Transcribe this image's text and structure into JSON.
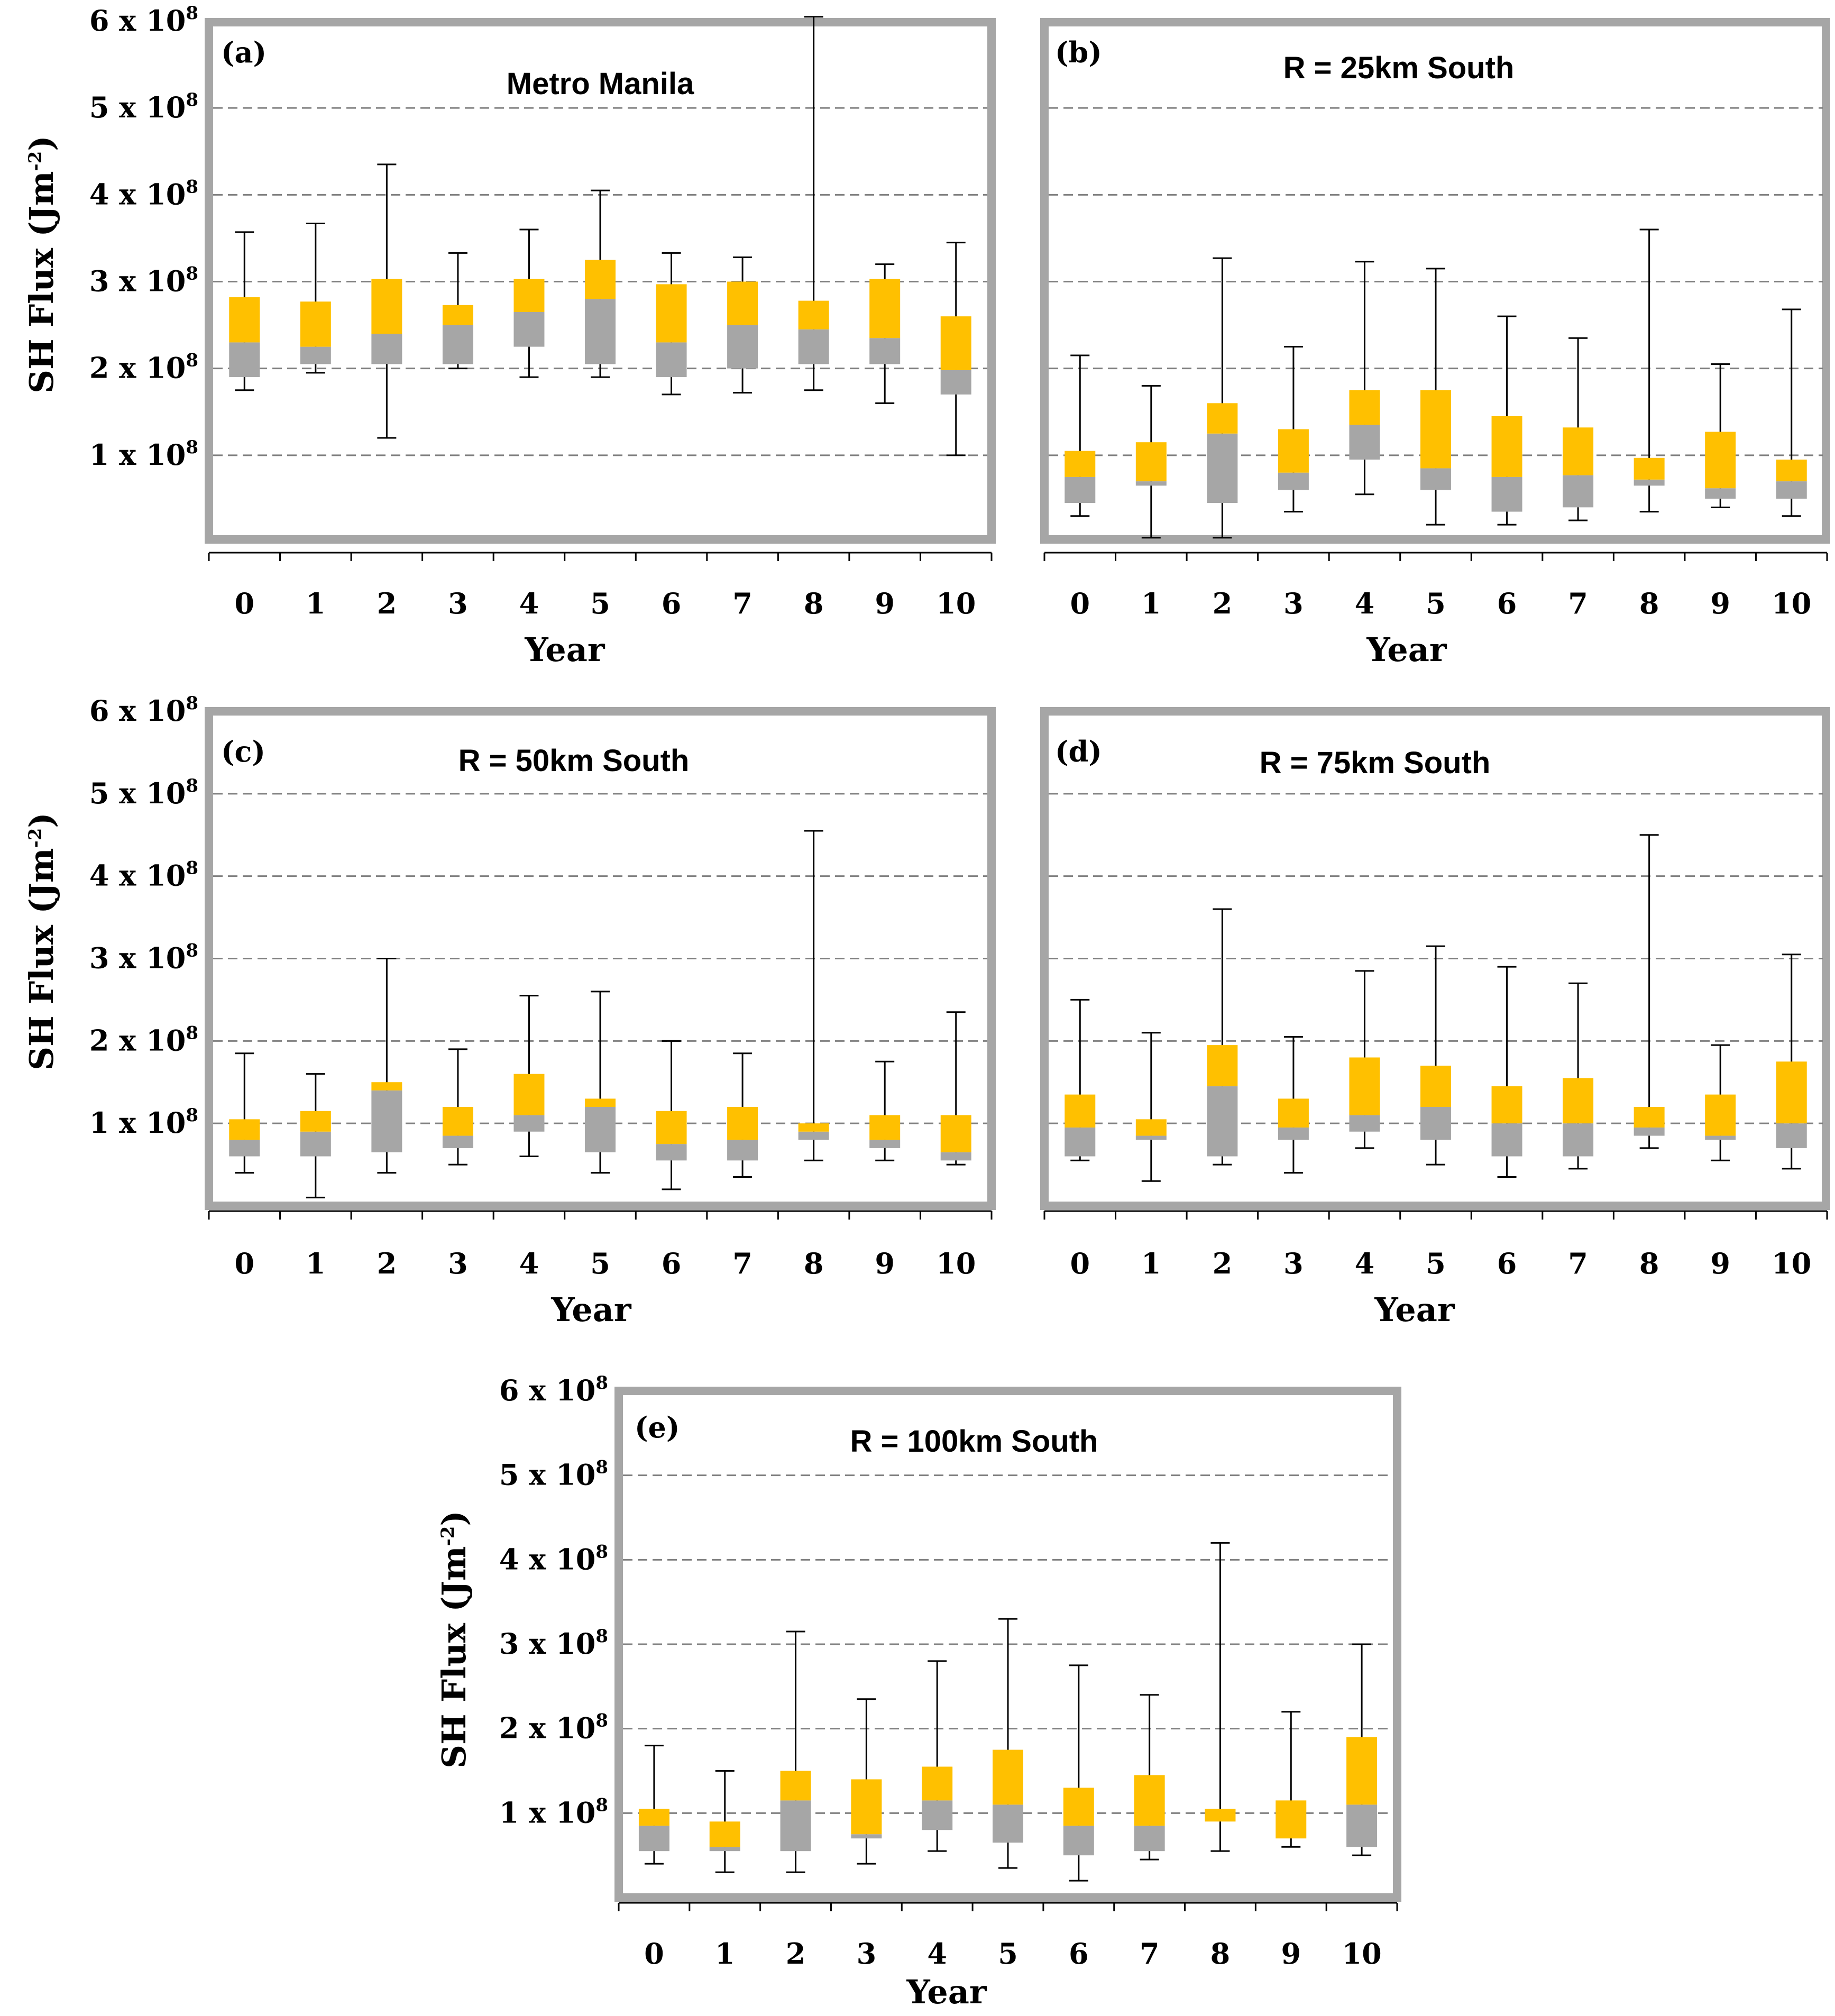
{
  "colors": {
    "upper_box": "#FFC000",
    "lower_box": "#A6A6A6",
    "frame": "#A6A6A6",
    "grid": "#808080",
    "whisker": "#000000"
  },
  "chart_data": [
    {
      "id": "a",
      "type": "box",
      "panel_label": "(a)",
      "title": "Metro Manila",
      "xlabel": "Year",
      "ylabel": "SH Flux (Jm-2)",
      "ylabel_base": "SH Flux (Jm",
      "ylabel_exp": "-2",
      "ylabel_close": ")",
      "categories": [
        "0",
        "1",
        "2",
        "3",
        "4",
        "5",
        "6",
        "7",
        "8",
        "9",
        "10"
      ],
      "y_tick_values": [
        1,
        2,
        3,
        4,
        5,
        6
      ],
      "y_ticks": [
        {
          "mant": "1 x 10",
          "exp": "8"
        },
        {
          "mant": "2 x 10",
          "exp": "8"
        },
        {
          "mant": "3 x 10",
          "exp": "8"
        },
        {
          "mant": "4 x 10",
          "exp": "8"
        },
        {
          "mant": "5 x 10",
          "exp": "8"
        },
        {
          "mant": "6 x 10",
          "exp": "8"
        }
      ],
      "ylim": [
        0.0,
        6.0
      ],
      "unit_multiplier": 100000000,
      "min": [
        1.75,
        1.95,
        1.2,
        2.0,
        1.9,
        1.9,
        1.7,
        1.72,
        1.75,
        1.6,
        1.0
      ],
      "q1": [
        1.9,
        2.05,
        2.05,
        2.05,
        2.25,
        2.05,
        1.9,
        2.0,
        2.05,
        2.05,
        1.7
      ],
      "median": [
        2.3,
        2.25,
        2.4,
        2.5,
        2.65,
        2.8,
        2.3,
        2.5,
        2.45,
        2.35,
        1.98
      ],
      "q3": [
        2.82,
        2.77,
        3.03,
        2.73,
        3.03,
        3.25,
        2.97,
        3.0,
        2.78,
        3.03,
        2.6
      ],
      "max": [
        3.57,
        3.67,
        4.35,
        3.33,
        3.6,
        4.05,
        3.33,
        3.28,
        6.05,
        3.2,
        3.45
      ]
    },
    {
      "id": "b",
      "type": "box",
      "panel_label": "(b)",
      "title": "R = 25km South",
      "xlabel": "Year",
      "categories": [
        "0",
        "1",
        "2",
        "3",
        "4",
        "5",
        "6",
        "7",
        "8",
        "9",
        "10"
      ],
      "y_tick_values": [
        1,
        2,
        3,
        4,
        5,
        6
      ],
      "ylim": [
        0.0,
        6.0
      ],
      "unit_multiplier": 100000000,
      "min": [
        0.3,
        0.05,
        0.05,
        0.35,
        0.55,
        0.2,
        0.2,
        0.25,
        0.35,
        0.4,
        0.3
      ],
      "q1": [
        0.45,
        0.65,
        0.45,
        0.6,
        0.95,
        0.6,
        0.35,
        0.4,
        0.65,
        0.5,
        0.5
      ],
      "median": [
        0.75,
        0.7,
        1.25,
        0.8,
        1.35,
        0.85,
        0.75,
        0.77,
        0.72,
        0.62,
        0.7
      ],
      "q3": [
        1.05,
        1.15,
        1.6,
        1.3,
        1.75,
        1.75,
        1.45,
        1.32,
        0.97,
        1.27,
        0.95
      ],
      "max": [
        2.15,
        1.8,
        3.27,
        2.25,
        3.23,
        3.15,
        2.6,
        2.35,
        3.6,
        2.05,
        2.68
      ]
    },
    {
      "id": "c",
      "type": "box",
      "panel_label": "(c)",
      "title": "R = 50km South",
      "xlabel": "Year",
      "ylabel": "SH Flux (Jm-2)",
      "ylabel_base": "SH Flux (Jm",
      "ylabel_exp": "-2",
      "ylabel_close": ")",
      "categories": [
        "0",
        "1",
        "2",
        "3",
        "4",
        "5",
        "6",
        "7",
        "8",
        "9",
        "10"
      ],
      "y_tick_values": [
        1,
        2,
        3,
        4,
        5,
        6
      ],
      "y_ticks": [
        {
          "mant": "1 x 10",
          "exp": "8"
        },
        {
          "mant": "2 x 10",
          "exp": "8"
        },
        {
          "mant": "3 x 10",
          "exp": "8"
        },
        {
          "mant": "4 x 10",
          "exp": "8"
        },
        {
          "mant": "5 x 10",
          "exp": "8"
        },
        {
          "mant": "6 x 10",
          "exp": "8"
        }
      ],
      "ylim": [
        0.0,
        6.0
      ],
      "unit_multiplier": 100000000,
      "min": [
        0.4,
        0.1,
        0.4,
        0.5,
        0.6,
        0.4,
        0.2,
        0.35,
        0.55,
        0.55,
        0.5
      ],
      "q1": [
        0.6,
        0.6,
        0.65,
        0.7,
        0.9,
        0.65,
        0.55,
        0.55,
        0.8,
        0.7,
        0.55
      ],
      "median": [
        0.8,
        0.9,
        1.4,
        0.85,
        1.1,
        1.2,
        0.75,
        0.8,
        0.9,
        0.8,
        0.65
      ],
      "q3": [
        1.05,
        1.15,
        1.5,
        1.2,
        1.6,
        1.3,
        1.15,
        1.2,
        1.0,
        1.1,
        1.1
      ],
      "max": [
        1.85,
        1.6,
        3.0,
        1.9,
        2.55,
        2.6,
        2.0,
        1.85,
        4.55,
        1.75,
        2.35
      ]
    },
    {
      "id": "d",
      "type": "box",
      "panel_label": "(d)",
      "title": "R = 75km South",
      "xlabel": "Year",
      "categories": [
        "0",
        "1",
        "2",
        "3",
        "4",
        "5",
        "6",
        "7",
        "8",
        "9",
        "10"
      ],
      "y_tick_values": [
        1,
        2,
        3,
        4,
        5,
        6
      ],
      "ylim": [
        0.0,
        6.0
      ],
      "unit_multiplier": 100000000,
      "min": [
        0.55,
        0.3,
        0.5,
        0.4,
        0.7,
        0.5,
        0.35,
        0.45,
        0.7,
        0.55,
        0.45
      ],
      "q1": [
        0.6,
        0.8,
        0.6,
        0.8,
        0.9,
        0.8,
        0.6,
        0.6,
        0.85,
        0.8,
        0.7
      ],
      "median": [
        0.95,
        0.85,
        1.45,
        0.95,
        1.1,
        1.2,
        1.0,
        1.0,
        0.95,
        0.85,
        1.0
      ],
      "q3": [
        1.35,
        1.05,
        1.95,
        1.3,
        1.8,
        1.7,
        1.45,
        1.55,
        1.2,
        1.35,
        1.75
      ],
      "max": [
        2.5,
        2.1,
        3.6,
        2.05,
        2.85,
        3.15,
        2.9,
        2.7,
        4.5,
        1.95,
        3.05
      ]
    },
    {
      "id": "e",
      "type": "box",
      "panel_label": "(e)",
      "title": "R = 100km South",
      "xlabel": "Year",
      "ylabel": "SH Flux (Jm-2)",
      "ylabel_base": "SH Flux (Jm",
      "ylabel_exp": "-2",
      "ylabel_close": ")",
      "categories": [
        "0",
        "1",
        "2",
        "3",
        "4",
        "5",
        "6",
        "7",
        "8",
        "9",
        "10"
      ],
      "y_tick_values": [
        1,
        2,
        3,
        4,
        5,
        6
      ],
      "y_ticks": [
        {
          "mant": "1 x 10",
          "exp": "8"
        },
        {
          "mant": "2 x 10",
          "exp": "8"
        },
        {
          "mant": "3 x 10",
          "exp": "8"
        },
        {
          "mant": "4 x 10",
          "exp": "8"
        },
        {
          "mant": "5 x 10",
          "exp": "8"
        },
        {
          "mant": "6 x 10",
          "exp": "8"
        }
      ],
      "ylim": [
        0.0,
        6.0
      ],
      "unit_multiplier": 100000000,
      "min": [
        0.4,
        0.3,
        0.3,
        0.4,
        0.55,
        0.35,
        0.2,
        0.45,
        0.55,
        0.6,
        0.5
      ],
      "q1": [
        0.55,
        0.55,
        0.55,
        0.7,
        0.8,
        0.65,
        0.5,
        0.55,
        0.9,
        0.7,
        0.6
      ],
      "median": [
        0.85,
        0.6,
        1.15,
        0.75,
        1.15,
        1.1,
        0.85,
        0.85,
        0.9,
        0.7,
        1.1
      ],
      "q3": [
        1.05,
        0.9,
        1.5,
        1.4,
        1.55,
        1.75,
        1.3,
        1.45,
        1.05,
        1.15,
        1.9
      ],
      "max": [
        1.8,
        1.5,
        3.15,
        2.35,
        2.8,
        3.3,
        2.75,
        2.4,
        4.2,
        2.2,
        3.0
      ]
    }
  ]
}
